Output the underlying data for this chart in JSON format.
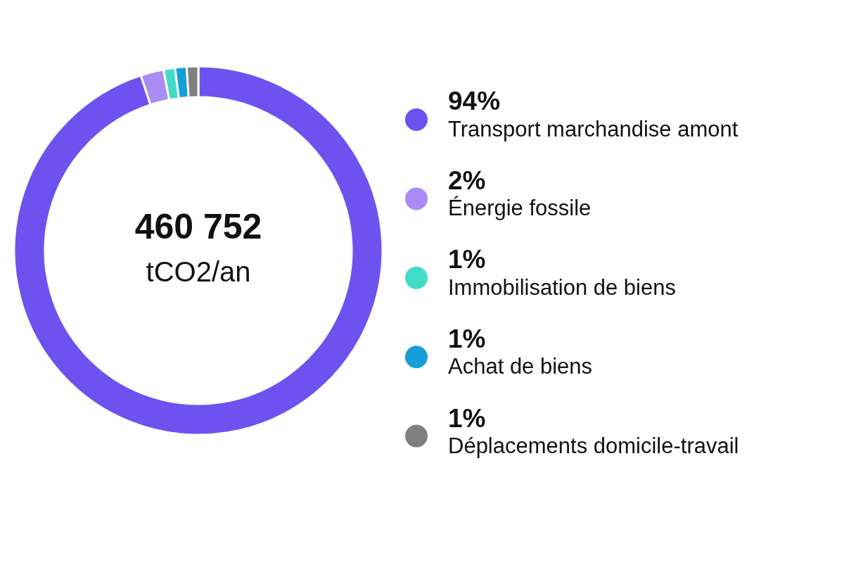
{
  "chart_data": {
    "type": "donut",
    "categories": [
      "Transport marchandise amont",
      "Énergie fossile",
      "Immobilisation de biens",
      "Achat de biens",
      "Déplacements domicile-travail"
    ],
    "values": [
      94,
      2,
      1,
      1,
      1
    ],
    "colors": [
      "#6e52ef",
      "#ab8bf5",
      "#40dcc8",
      "#159ed8",
      "#808080"
    ],
    "value_labels": [
      "94%",
      "2%",
      "1%",
      "1%",
      "1%"
    ],
    "legend": "right",
    "annotations": [
      "460 752",
      "tCO2/an"
    ]
  }
}
